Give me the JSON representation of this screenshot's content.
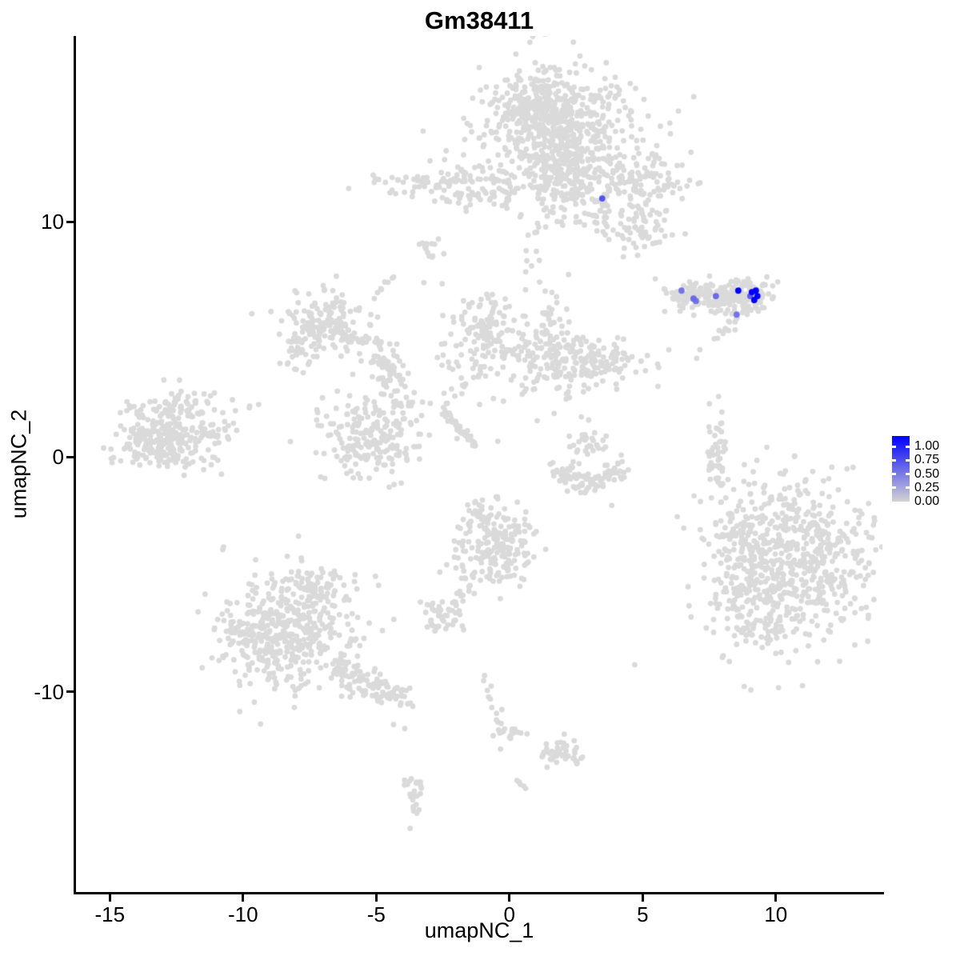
{
  "chart_data": {
    "type": "scatter",
    "title": "Gm38411",
    "xlabel": "umapNC_1",
    "ylabel": "umapNC_2",
    "xlim": [
      -16.27,
      14.0
    ],
    "ylim": [
      -18.51,
      17.9
    ],
    "x_ticks": [
      -15,
      -10,
      -5,
      0,
      5,
      10
    ],
    "x_tick_labels": [
      "-15",
      "-10",
      "-5",
      "0",
      "5",
      "10"
    ],
    "y_ticks": [
      10,
      0,
      -10
    ],
    "y_tick_labels": [
      "10",
      "0",
      "-10"
    ],
    "grid": false,
    "theme": "classic",
    "point_color_background": "#DADADA",
    "legend": {
      "position": "right",
      "low_color": "#D3D3D3",
      "high_color": "#0000FF",
      "values": [
        1.0,
        0.75,
        0.5,
        0.25,
        0.0
      ],
      "labels": [
        "1.00",
        "0.75",
        "0.50",
        "0.25",
        "0.00"
      ]
    },
    "background_clusters_format": "[x, y, sx, sy, n]",
    "background_clusters": [
      [
        1.75,
        13.82,
        1.35,
        1.29,
        520
      ],
      [
        1.0,
        14.94,
        0.72,
        0.61,
        130
      ],
      [
        2.05,
        11.71,
        0.54,
        0.92,
        120
      ],
      [
        4.54,
        11.81,
        1.11,
        0.48,
        100
      ],
      [
        4.9,
        9.84,
        0.6,
        0.75,
        75
      ],
      [
        3.49,
        10.69,
        0.27,
        0.71,
        30
      ],
      [
        1.9,
        12.97,
        1.95,
        1.9,
        110
      ],
      [
        0.9,
        8.5,
        0.3,
        0.75,
        12
      ],
      [
        -2.37,
        11.51,
        1.17,
        0.44,
        105
      ],
      [
        -0.41,
        11.17,
        0.66,
        0.31,
        28
      ],
      [
        -2.91,
        8.82,
        0.27,
        0.31,
        14
      ],
      [
        7.96,
        6.71,
        0.78,
        0.31,
        110
      ],
      [
        9.13,
        6.81,
        0.39,
        0.37,
        70
      ],
      [
        6.58,
        6.88,
        0.39,
        0.24,
        40
      ],
      [
        8.65,
        7.26,
        0.3,
        0.2,
        20
      ],
      [
        -7.05,
        5.55,
        0.84,
        0.68,
        150
      ],
      [
        -7.89,
        4.67,
        0.3,
        0.41,
        25
      ],
      [
        -4.41,
        3.17,
        0.42,
        0.75,
        65
      ],
      [
        -5.25,
        0.86,
        0.96,
        0.88,
        210
      ],
      [
        -0.86,
        5.21,
        0.66,
        0.88,
        125
      ],
      [
        1.9,
        4.19,
        0.96,
        0.68,
        160
      ],
      [
        1.6,
        5.76,
        0.36,
        0.61,
        35
      ],
      [
        3.58,
        4.06,
        0.48,
        0.44,
        50
      ],
      [
        -1.56,
        3.11,
        1.8,
        1.29,
        30
      ],
      [
        5.2,
        4.06,
        0.54,
        0.41,
        10
      ],
      [
        -13.12,
        0.79,
        0.84,
        0.61,
        220
      ],
      [
        -12.37,
        2.12,
        1.05,
        0.34,
        65
      ],
      [
        -11.08,
        1.0,
        0.48,
        0.27,
        35
      ],
      [
        -12.97,
        0.04,
        0.9,
        0.27,
        40
      ],
      [
        2.05,
        -0.64,
        0.3,
        0.27,
        28
      ],
      [
        2.95,
        -1.08,
        0.54,
        0.27,
        45
      ],
      [
        3.97,
        -0.67,
        0.3,
        0.27,
        22
      ],
      [
        3.01,
        0.62,
        0.36,
        0.34,
        30
      ],
      [
        7.78,
        0.32,
        0.18,
        0.88,
        42
      ],
      [
        7.93,
        -1.01,
        0.12,
        0.34,
        7
      ],
      [
        10.67,
        -4.31,
        1.5,
        1.77,
        620
      ],
      [
        8.74,
        -5.53,
        0.66,
        1.29,
        100
      ],
      [
        8.92,
        -2.81,
        0.54,
        0.68,
        35
      ],
      [
        9.55,
        -7.37,
        0.75,
        0.41,
        35
      ],
      [
        -0.44,
        -3.77,
        0.78,
        0.88,
        190
      ],
      [
        -1.11,
        -2.54,
        0.3,
        0.34,
        25
      ],
      [
        -2.55,
        -6.76,
        0.45,
        0.37,
        45
      ],
      [
        -0.35,
        -11.72,
        0.24,
        0.27,
        14
      ],
      [
        -8.37,
        -7.51,
        1.26,
        1.29,
        400
      ],
      [
        -7.41,
        -5.53,
        0.84,
        0.48,
        70
      ],
      [
        -9.66,
        -7.78,
        0.36,
        0.85,
        55
      ],
      [
        -5.07,
        -10.09,
        0.75,
        0.41,
        25
      ],
      [
        1.9,
        -12.54,
        0.39,
        0.31,
        40
      ],
      [
        2.47,
        -12.81,
        0.15,
        0.14,
        7
      ],
      [
        -3.57,
        -14.45,
        0.21,
        0.48,
        26
      ]
    ],
    "background_strands_format": "[x1, y1, x2, y2, n, jitter]",
    "background_strands": [
      [
        7.69,
        5.0,
        8.56,
        5.88,
        14,
        0.09
      ],
      [
        -6.22,
        5.14,
        -4.71,
        4.86,
        22,
        0.12
      ],
      [
        -5.0,
        4.3,
        -4.5,
        3.8,
        10,
        0.09
      ],
      [
        -6.39,
        6.78,
        -6.15,
        4.53,
        12,
        0.06
      ],
      [
        -1.11,
        3.95,
        -2.31,
        2.24,
        16,
        0.15
      ],
      [
        -2.55,
        2.01,
        -1.23,
        0.48,
        42,
        0.07
      ],
      [
        -1.11,
        -4.92,
        -2.13,
        -6.21,
        13,
        0.12
      ],
      [
        -0.89,
        -9.34,
        -0.38,
        -11.38,
        11,
        0.08
      ],
      [
        0.1,
        -11.72,
        0.64,
        -11.76,
        4,
        0.03
      ],
      [
        -6.51,
        -8.73,
        -3.93,
        -10.36,
        85,
        0.25
      ],
      [
        0.25,
        -13.76,
        0.58,
        -14.11,
        5,
        0.02
      ],
      [
        -5.07,
        6.78,
        -4.35,
        7.73,
        8,
        0.05
      ]
    ],
    "background_singles": [
      [
        -4.35,
        -11.39
      ],
      [
        -3.93,
        -11.56
      ],
      [
        3.84,
        -2.07
      ],
      [
        8.35,
        -2.45
      ],
      [
        2.25,
        2.52
      ],
      [
        2.7,
        1.7
      ],
      [
        7.15,
        4.56
      ],
      [
        7.03,
        4.19
      ],
      [
        7.51,
        7.69
      ],
      [
        -3.21,
        7.41
      ]
    ],
    "highlighted_cells": [
      {
        "x": 3.48,
        "y": 10.99,
        "value": 0.6
      },
      {
        "x": 6.46,
        "y": 7.07,
        "value": 0.45
      },
      {
        "x": 6.91,
        "y": 6.73,
        "value": 0.5
      },
      {
        "x": 7.0,
        "y": 6.63,
        "value": 0.45
      },
      {
        "x": 7.75,
        "y": 6.84,
        "value": 0.5
      },
      {
        "x": 8.53,
        "y": 6.05,
        "value": 0.45
      },
      {
        "x": 9.04,
        "y": 6.84,
        "value": 0.55
      },
      {
        "x": 8.59,
        "y": 7.07,
        "value": 1.0
      },
      {
        "x": 9.1,
        "y": 7.01,
        "value": 1.0
      },
      {
        "x": 9.25,
        "y": 7.07,
        "value": 1.0
      },
      {
        "x": 9.31,
        "y": 6.84,
        "value": 1.0
      },
      {
        "x": 9.19,
        "y": 6.67,
        "value": 1.0
      }
    ]
  }
}
